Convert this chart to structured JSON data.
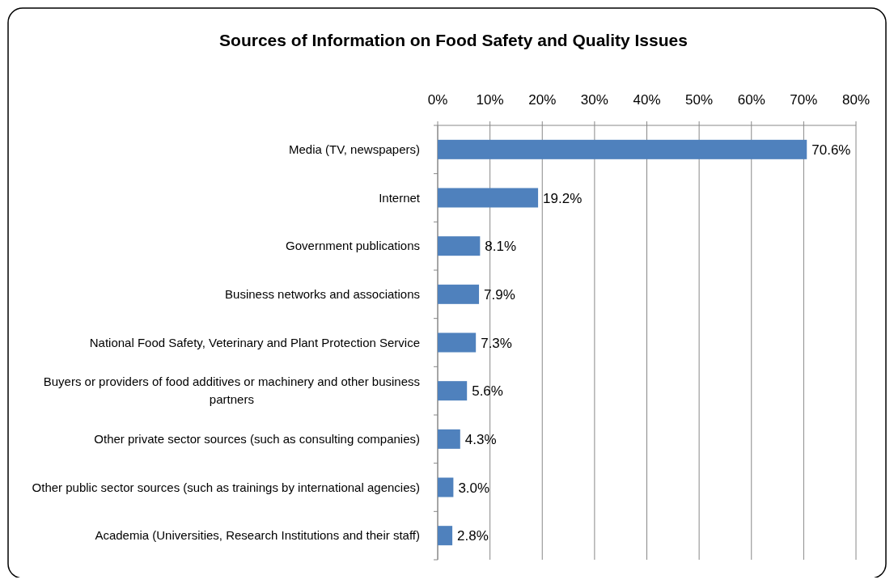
{
  "chart_data": {
    "type": "bar",
    "orientation": "horizontal",
    "title": "Sources of Information on Food Safety and Quality Issues",
    "categories": [
      "Media (TV, newspapers)",
      "Internet",
      "Government publications",
      "Business networks and associations",
      "National Food Safety, Veterinary and Plant Protection Service",
      "Buyers or providers of food additives or machinery and other business partners",
      "Other private sector sources (such as consulting companies)",
      "Other public sector sources (such as trainings by international agencies)",
      "Academia (Universities, Research Institutions and their staff)"
    ],
    "values": [
      70.6,
      19.2,
      8.1,
      7.9,
      7.3,
      5.6,
      4.3,
      3.0,
      2.8
    ],
    "value_labels": [
      "70.6%",
      "19.2%",
      "8.1%",
      "7.9%",
      "7.3%",
      "5.6%",
      "4.3%",
      "3.0%",
      "2.8%"
    ],
    "color": "#4f81bd",
    "xlim": [
      0,
      80
    ],
    "xticks": [
      {
        "value": 0,
        "label": "0%"
      },
      {
        "value": 10,
        "label": "10%"
      },
      {
        "value": 20,
        "label": "20%"
      },
      {
        "value": 30,
        "label": "30%"
      },
      {
        "value": 40,
        "label": "40%"
      },
      {
        "value": 50,
        "label": "50%"
      },
      {
        "value": 60,
        "label": "60%"
      },
      {
        "value": 70,
        "label": "70%"
      },
      {
        "value": 80,
        "label": "80%"
      }
    ],
    "grid": "x"
  }
}
